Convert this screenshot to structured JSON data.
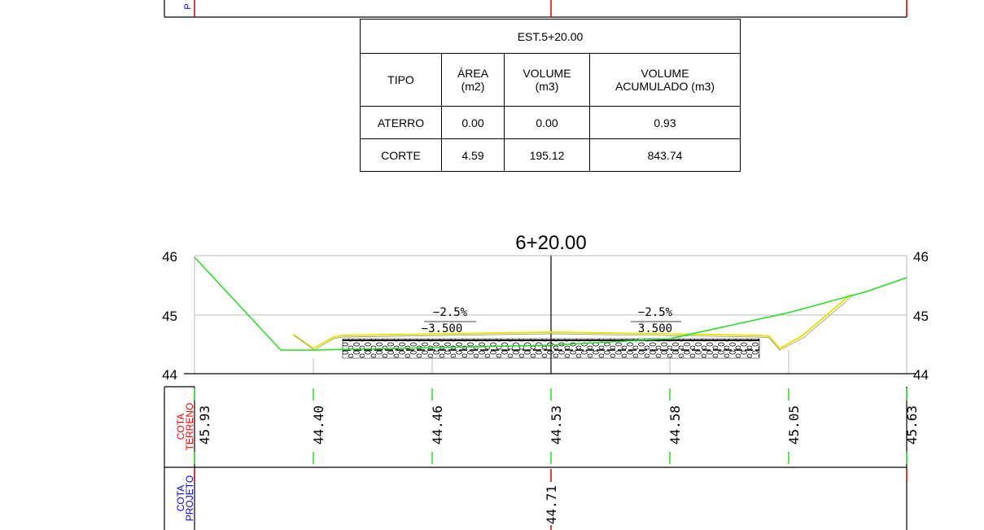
{
  "top_band": {
    "label": "P"
  },
  "volume_table": {
    "title": "EST.5+20.00",
    "headers": {
      "tipo": "TIPO",
      "area": [
        "ÁREA",
        "(m2)"
      ],
      "volume": [
        "VOLUME",
        "(m3)"
      ],
      "volume_acumulado": [
        "VOLUME",
        "ACUMULADO (m3)"
      ]
    },
    "rows": [
      {
        "tipo": "ATERRO",
        "area": "0.00",
        "volume": "0.00",
        "acumulado": "0.93"
      },
      {
        "tipo": "CORTE",
        "area": "4.59",
        "volume": "195.12",
        "acumulado": "843.74"
      }
    ]
  },
  "section": {
    "title": "6+20.00",
    "y_ticks": [
      "46",
      "45",
      "44"
    ],
    "y_range": [
      44,
      46
    ],
    "slope_left": {
      "grade": "−2.5%",
      "width": "−3.500"
    },
    "slope_right": {
      "grade": "−2.5%",
      "width": "3.500"
    },
    "cota_terreno_label": [
      "COTA",
      "TERRENO"
    ],
    "cota_projeto_label": [
      "COTA",
      "PROJETO"
    ],
    "cota_terreno_values": [
      "45.93",
      "44.40",
      "44.46",
      "44.53",
      "44.58",
      "45.05",
      "45.63"
    ],
    "cota_projeto_values": [
      "44.71"
    ],
    "colors": {
      "terrain": "#22dd22",
      "pavement": "#e6e600",
      "axis": "#000000",
      "grid": "#bbbbbb",
      "cota_terreno": "#ff0000",
      "cota_projeto": "#0000ff",
      "tick_red": "#dd0000"
    }
  }
}
